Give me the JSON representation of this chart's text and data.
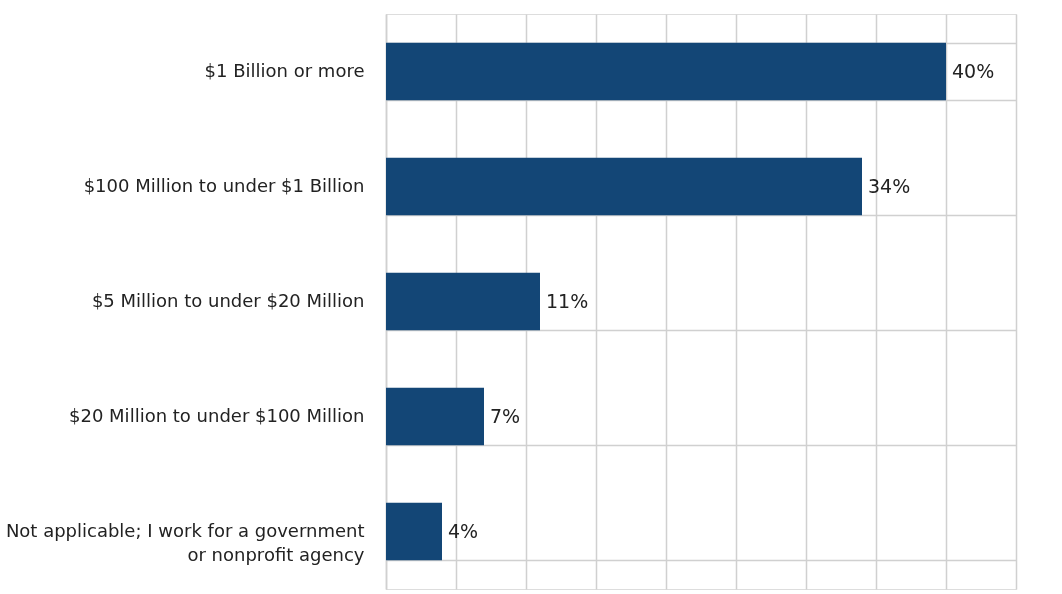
{
  "chart_data": {
    "type": "bar",
    "orientation": "horizontal",
    "categories": [
      "$1 Billion or more",
      "$100 Million to under $1 Billion",
      "$5 Million to under $20 Million",
      "$20 Million to under $100 Million",
      "Not applicable; I work for a government or nonprofit agency"
    ],
    "values": [
      40,
      34,
      11,
      7,
      4
    ],
    "value_labels": [
      "40%",
      "34%",
      "11%",
      "7%",
      "4%"
    ],
    "color": "#134676",
    "xlim": [
      0,
      45
    ],
    "xticks": [
      {
        "value": 0,
        "label": null
      },
      {
        "value": 5,
        "label": null
      },
      {
        "value": 10,
        "label": null
      },
      {
        "value": 15,
        "label": null
      },
      {
        "value": 20,
        "label": null
      },
      {
        "value": 25,
        "label": null
      },
      {
        "value": 30,
        "label": null
      },
      {
        "value": 35,
        "label": null
      },
      {
        "value": 40,
        "label": null
      },
      {
        "value": 45,
        "label": null
      }
    ],
    "tick_labels": "y",
    "grid": true
  }
}
